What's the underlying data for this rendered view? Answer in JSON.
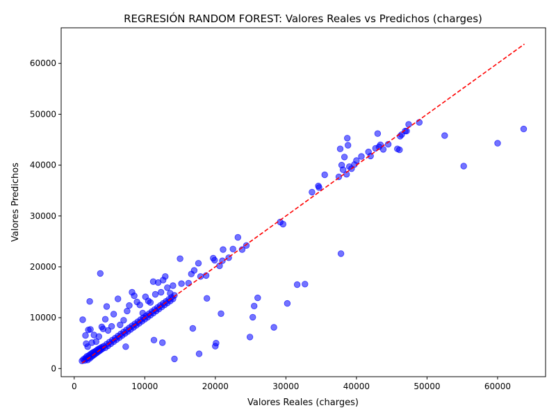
{
  "chart_data": {
    "type": "scatter",
    "title": "REGRESIÓN RANDOM FOREST: Valores Reales vs Predichos (charges)",
    "xlabel": "Valores Reales (charges)",
    "ylabel": "Valores Predichos",
    "xlim": [
      -1850,
      66800
    ],
    "ylim": [
      -1600,
      67000
    ],
    "xticks": [
      0,
      10000,
      20000,
      30000,
      40000,
      50000,
      60000
    ],
    "yticks": [
      0,
      10000,
      20000,
      30000,
      40000,
      50000,
      60000
    ],
    "xtick_labels": [
      "0",
      "10000",
      "20000",
      "30000",
      "40000",
      "50000",
      "60000"
    ],
    "ytick_labels": [
      "0",
      "10000",
      "20000",
      "30000",
      "40000",
      "50000",
      "60000"
    ],
    "grid": false,
    "point_color": "#0000ff",
    "point_alpha": 0.55,
    "reference_line": {
      "from": [
        1100,
        1100
      ],
      "to": [
        63800,
        63800
      ],
      "color": "#ff0000",
      "style": "dashed"
    },
    "series": [
      {
        "points": [
          [
            1100,
            1500
          ],
          [
            1300,
            1800
          ],
          [
            1500,
            1600
          ],
          [
            1600,
            2100
          ],
          [
            1700,
            1900
          ],
          [
            1800,
            2400
          ],
          [
            1900,
            1700
          ],
          [
            2000,
            2200
          ],
          [
            2100,
            2600
          ],
          [
            2200,
            2000
          ],
          [
            2300,
            2800
          ],
          [
            2400,
            2300
          ],
          [
            2500,
            3000
          ],
          [
            2600,
            2500
          ],
          [
            2700,
            3200
          ],
          [
            2800,
            2700
          ],
          [
            2900,
            3300
          ],
          [
            3000,
            2900
          ],
          [
            3100,
            3500
          ],
          [
            3200,
            3100
          ],
          [
            3300,
            3700
          ],
          [
            3400,
            3300
          ],
          [
            3500,
            3900
          ],
          [
            3600,
            3500
          ],
          [
            3700,
            4000
          ],
          [
            3800,
            3700
          ],
          [
            3900,
            4200
          ],
          [
            4000,
            3900
          ],
          [
            4200,
            4400
          ],
          [
            4400,
            4100
          ],
          [
            4600,
            4800
          ],
          [
            4800,
            4500
          ],
          [
            5000,
            5200
          ],
          [
            5200,
            4900
          ],
          [
            5400,
            5600
          ],
          [
            5600,
            5300
          ],
          [
            5800,
            6000
          ],
          [
            6000,
            5700
          ],
          [
            6200,
            6400
          ],
          [
            6400,
            6100
          ],
          [
            6600,
            6800
          ],
          [
            6800,
            6500
          ],
          [
            7000,
            7200
          ],
          [
            7200,
            6900
          ],
          [
            7400,
            7600
          ],
          [
            7600,
            7300
          ],
          [
            7800,
            8000
          ],
          [
            8000,
            7700
          ],
          [
            8200,
            8400
          ],
          [
            8400,
            8100
          ],
          [
            8600,
            8800
          ],
          [
            8800,
            8500
          ],
          [
            9000,
            9200
          ],
          [
            9200,
            8900
          ],
          [
            9400,
            9600
          ],
          [
            9600,
            9300
          ],
          [
            9800,
            10000
          ],
          [
            10000,
            9700
          ],
          [
            10200,
            10400
          ],
          [
            10400,
            10100
          ],
          [
            10600,
            10800
          ],
          [
            10800,
            10500
          ],
          [
            11000,
            11200
          ],
          [
            11200,
            10900
          ],
          [
            11400,
            11600
          ],
          [
            11600,
            11300
          ],
          [
            11800,
            12000
          ],
          [
            12000,
            11700
          ],
          [
            12200,
            12400
          ],
          [
            12400,
            12100
          ],
          [
            12600,
            12800
          ],
          [
            12800,
            12500
          ],
          [
            13000,
            13200
          ],
          [
            13200,
            12900
          ],
          [
            13400,
            13600
          ],
          [
            13600,
            13300
          ],
          [
            13800,
            14000
          ],
          [
            14000,
            13700
          ],
          [
            14200,
            14400
          ],
          [
            1200,
            9600
          ],
          [
            1600,
            6500
          ],
          [
            1700,
            4900
          ],
          [
            1900,
            4300
          ],
          [
            2000,
            7600
          ],
          [
            2200,
            13200
          ],
          [
            2300,
            7700
          ],
          [
            2500,
            5100
          ],
          [
            2800,
            6600
          ],
          [
            3100,
            5300
          ],
          [
            3500,
            6300
          ],
          [
            3700,
            18700
          ],
          [
            3900,
            8200
          ],
          [
            4100,
            7800
          ],
          [
            4400,
            9700
          ],
          [
            4600,
            12200
          ],
          [
            4800,
            7500
          ],
          [
            5300,
            8300
          ],
          [
            5600,
            10700
          ],
          [
            6200,
            13700
          ],
          [
            6500,
            8600
          ],
          [
            7000,
            9500
          ],
          [
            7300,
            4300
          ],
          [
            7500,
            11300
          ],
          [
            7800,
            12400
          ],
          [
            8200,
            15000
          ],
          [
            8500,
            14300
          ],
          [
            8900,
            13100
          ],
          [
            9300,
            12500
          ],
          [
            9700,
            10900
          ],
          [
            10100,
            14100
          ],
          [
            10500,
            13300
          ],
          [
            10800,
            13000
          ],
          [
            11200,
            17100
          ],
          [
            11500,
            14600
          ],
          [
            11900,
            16900
          ],
          [
            12300,
            15000
          ],
          [
            12600,
            17400
          ],
          [
            12900,
            18100
          ],
          [
            13200,
            15900
          ],
          [
            13600,
            14800
          ],
          [
            14000,
            16300
          ],
          [
            11300,
            5600
          ],
          [
            12500,
            5100
          ],
          [
            14200,
            1900
          ],
          [
            15000,
            21600
          ],
          [
            15200,
            16700
          ],
          [
            16200,
            16800
          ],
          [
            16600,
            18600
          ],
          [
            16800,
            7900
          ],
          [
            17000,
            19300
          ],
          [
            17600,
            20700
          ],
          [
            17900,
            18100
          ],
          [
            18700,
            18300
          ],
          [
            18800,
            13800
          ],
          [
            17700,
            2900
          ],
          [
            19700,
            21700
          ],
          [
            19900,
            21300
          ],
          [
            20000,
            4400
          ],
          [
            20100,
            5000
          ],
          [
            20600,
            20200
          ],
          [
            20800,
            10800
          ],
          [
            21000,
            21200
          ],
          [
            21100,
            23400
          ],
          [
            21900,
            21800
          ],
          [
            22500,
            23500
          ],
          [
            23200,
            25800
          ],
          [
            23800,
            23400
          ],
          [
            24400,
            24200
          ],
          [
            24900,
            6200
          ],
          [
            25300,
            10100
          ],
          [
            25500,
            12300
          ],
          [
            26000,
            13900
          ],
          [
            28300,
            8100
          ],
          [
            29200,
            28800
          ],
          [
            29600,
            28400
          ],
          [
            30200,
            12800
          ],
          [
            31600,
            16500
          ],
          [
            32700,
            16600
          ],
          [
            33700,
            34700
          ],
          [
            34600,
            35900
          ],
          [
            34700,
            35600
          ],
          [
            35500,
            38100
          ],
          [
            37500,
            37700
          ],
          [
            37700,
            43200
          ],
          [
            37800,
            22600
          ],
          [
            37900,
            40000
          ],
          [
            38100,
            39100
          ],
          [
            38300,
            41600
          ],
          [
            38600,
            38200
          ],
          [
            38700,
            45300
          ],
          [
            38800,
            43900
          ],
          [
            39000,
            39700
          ],
          [
            39300,
            39300
          ],
          [
            39700,
            40100
          ],
          [
            40000,
            40900
          ],
          [
            40700,
            41700
          ],
          [
            41700,
            42600
          ],
          [
            42000,
            41800
          ],
          [
            42700,
            43300
          ],
          [
            43000,
            46200
          ],
          [
            43200,
            43600
          ],
          [
            43400,
            44000
          ],
          [
            43800,
            43100
          ],
          [
            44500,
            44100
          ],
          [
            45800,
            43200
          ],
          [
            46100,
            43000
          ],
          [
            46200,
            45700
          ],
          [
            46400,
            46000
          ],
          [
            46900,
            46700
          ],
          [
            47100,
            46700
          ],
          [
            47400,
            48000
          ],
          [
            48900,
            48400
          ],
          [
            52500,
            45800
          ],
          [
            55200,
            39800
          ],
          [
            60000,
            44300
          ],
          [
            63700,
            47100
          ]
        ]
      }
    ]
  }
}
